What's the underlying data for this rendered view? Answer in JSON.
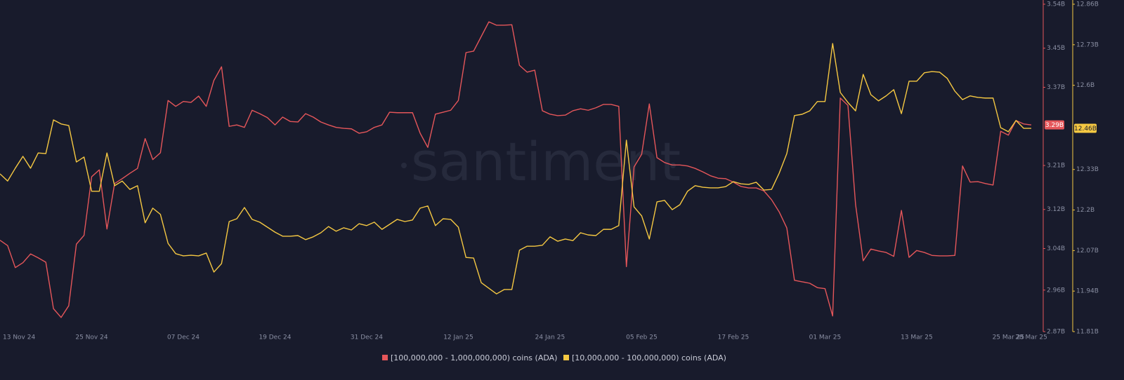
{
  "chart_data": {
    "type": "line",
    "watermark": "santiment",
    "x": [
      "2024-11-13",
      "2024-11-14",
      "2024-11-15",
      "2024-11-16",
      "2024-11-17",
      "2024-11-18",
      "2024-11-19",
      "2024-11-20",
      "2024-11-21",
      "2024-11-22",
      "2024-11-23",
      "2024-11-24",
      "2024-11-25",
      "2024-11-26",
      "2024-11-27",
      "2024-11-28",
      "2024-11-29",
      "2024-11-30",
      "2024-12-01",
      "2024-12-02",
      "2024-12-03",
      "2024-12-04",
      "2024-12-05",
      "2024-12-06",
      "2024-12-07",
      "2024-12-08",
      "2024-12-09",
      "2024-12-10",
      "2024-12-11",
      "2024-12-12",
      "2024-12-13",
      "2024-12-14",
      "2024-12-15",
      "2024-12-16",
      "2024-12-17",
      "2024-12-18",
      "2024-12-19",
      "2024-12-20",
      "2024-12-21",
      "2024-12-22",
      "2024-12-23",
      "2024-12-24",
      "2024-12-25",
      "2024-12-26",
      "2024-12-27",
      "2024-12-28",
      "2024-12-29",
      "2024-12-30",
      "2024-12-31",
      "2025-01-01",
      "2025-01-02",
      "2025-01-03",
      "2025-01-04",
      "2025-01-05",
      "2025-01-06",
      "2025-01-07",
      "2025-01-08",
      "2025-01-09",
      "2025-01-10",
      "2025-01-11",
      "2025-01-12",
      "2025-01-13",
      "2025-01-14",
      "2025-01-15",
      "2025-01-16",
      "2025-01-17",
      "2025-01-18",
      "2025-01-19",
      "2025-01-20",
      "2025-01-21",
      "2025-01-22",
      "2025-01-23",
      "2025-01-24",
      "2025-01-25",
      "2025-01-26",
      "2025-01-27",
      "2025-01-28",
      "2025-01-29",
      "2025-01-30",
      "2025-01-31",
      "2025-02-01",
      "2025-02-02",
      "2025-02-03",
      "2025-02-04",
      "2025-02-05",
      "2025-02-06",
      "2025-02-07",
      "2025-02-08",
      "2025-02-09",
      "2025-02-10",
      "2025-02-11",
      "2025-02-12",
      "2025-02-13",
      "2025-02-14",
      "2025-02-15",
      "2025-02-16",
      "2025-02-17",
      "2025-02-18",
      "2025-02-19",
      "2025-02-20",
      "2025-02-21",
      "2025-02-22",
      "2025-02-23",
      "2025-02-24",
      "2025-02-25",
      "2025-02-26",
      "2025-02-27",
      "2025-02-28",
      "2025-03-01",
      "2025-03-02",
      "2025-03-03",
      "2025-03-04",
      "2025-03-05",
      "2025-03-06",
      "2025-03-07",
      "2025-03-08",
      "2025-03-09",
      "2025-03-10",
      "2025-03-11",
      "2025-03-12",
      "2025-03-13",
      "2025-03-14",
      "2025-03-15",
      "2025-03-16",
      "2025-03-17",
      "2025-03-18",
      "2025-03-19",
      "2025-03-20",
      "2025-03-21",
      "2025-03-22",
      "2025-03-23",
      "2025-03-24",
      "2025-03-25",
      "2025-03-26",
      "2025-03-27",
      "2025-03-28"
    ],
    "xticks": [
      {
        "value": "2024-11-13",
        "label": "13 Nov 24"
      },
      {
        "value": "2024-11-25",
        "label": "25 Nov 24"
      },
      {
        "value": "2024-12-07",
        "label": "07 Dec 24"
      },
      {
        "value": "2024-12-19",
        "label": "19 Dec 24"
      },
      {
        "value": "2024-12-31",
        "label": "31 Dec 24"
      },
      {
        "value": "2025-01-12",
        "label": "12 Jan 25"
      },
      {
        "value": "2025-01-24",
        "label": "24 Jan 25"
      },
      {
        "value": "2025-02-05",
        "label": "05 Feb 25"
      },
      {
        "value": "2025-02-17",
        "label": "17 Feb 25"
      },
      {
        "value": "2025-03-01",
        "label": "01 Mar 25"
      },
      {
        "value": "2025-03-13",
        "label": "13 Mar 25"
      },
      {
        "value": "2025-03-25",
        "label": "25 Mar 25"
      },
      {
        "value": "2025-03-28",
        "label": "28 Mar 25"
      }
    ],
    "ylim": [
      2.87,
      3.54
    ],
    "yticks": [
      {
        "value": 2.87,
        "label": "2.87B"
      },
      {
        "value": 2.955,
        "label": "2.96B"
      },
      {
        "value": 3.04,
        "label": "3.04B"
      },
      {
        "value": 3.12,
        "label": "3.12B"
      },
      {
        "value": 3.21,
        "label": "3.21B"
      },
      {
        "value": 3.37,
        "label": "3.37B"
      },
      {
        "value": 3.45,
        "label": "3.45B"
      },
      {
        "value": 3.54,
        "label": "3.54B"
      }
    ],
    "y2lim": [
      11.81,
      12.86
    ],
    "y2ticks": [
      {
        "value": 11.81,
        "label": "11.81B"
      },
      {
        "value": 11.94,
        "label": "11.94B"
      },
      {
        "value": 12.07,
        "label": "12.07B"
      },
      {
        "value": 12.2,
        "label": "12.2B"
      },
      {
        "value": 12.33,
        "label": "12.33B"
      },
      {
        "value": 12.6,
        "label": "12.6B"
      },
      {
        "value": 12.73,
        "label": "12.73B"
      },
      {
        "value": 12.86,
        "label": "12.86B"
      }
    ],
    "series": [
      {
        "name": "[100,000,000 - 1,000,000,000) coins (ADA)",
        "color": "#e5565a",
        "axis": "y",
        "current_label": "3.29B",
        "values": [
          3.057,
          3.046,
          3.001,
          3.011,
          3.029,
          3.021,
          3.012,
          2.917,
          2.899,
          2.923,
          3.049,
          3.067,
          3.187,
          3.201,
          3.08,
          3.173,
          3.183,
          3.194,
          3.204,
          3.265,
          3.222,
          3.236,
          3.343,
          3.331,
          3.341,
          3.339,
          3.352,
          3.331,
          3.384,
          3.412,
          3.29,
          3.293,
          3.288,
          3.323,
          3.316,
          3.308,
          3.293,
          3.309,
          3.3,
          3.299,
          3.316,
          3.309,
          3.299,
          3.293,
          3.288,
          3.286,
          3.285,
          3.276,
          3.279,
          3.288,
          3.293,
          3.319,
          3.318,
          3.318,
          3.318,
          3.276,
          3.247,
          3.315,
          3.319,
          3.323,
          3.343,
          3.441,
          3.444,
          3.474,
          3.504,
          3.497,
          3.497,
          3.498,
          3.415,
          3.401,
          3.405,
          3.322,
          3.315,
          3.312,
          3.313,
          3.322,
          3.326,
          3.323,
          3.328,
          3.335,
          3.335,
          3.331,
          3.003,
          3.207,
          3.233,
          3.336,
          3.226,
          3.216,
          3.211,
          3.211,
          3.209,
          3.204,
          3.197,
          3.189,
          3.184,
          3.183,
          3.176,
          3.167,
          3.164,
          3.164,
          3.158,
          3.14,
          3.115,
          3.082,
          2.975,
          2.972,
          2.969,
          2.96,
          2.958,
          2.902,
          3.348,
          3.333,
          3.13,
          3.015,
          3.039,
          3.035,
          3.032,
          3.024,
          3.118,
          3.022,
          3.036,
          3.032,
          3.026,
          3.025,
          3.025,
          3.026,
          3.209,
          3.176,
          3.177,
          3.173,
          3.17,
          3.28,
          3.272,
          3.302,
          3.295,
          3.293
        ]
      },
      {
        "name": "[10,000,000 - 100,000,000) coins (ADA)",
        "color": "#f5c842",
        "axis": "y2",
        "current_label": "12.46B",
        "values": [
          12.316,
          12.293,
          12.334,
          12.372,
          12.334,
          12.383,
          12.381,
          12.489,
          12.476,
          12.471,
          12.354,
          12.37,
          12.26,
          12.26,
          12.383,
          12.278,
          12.293,
          12.266,
          12.278,
          12.159,
          12.206,
          12.186,
          12.093,
          12.06,
          12.053,
          12.055,
          12.053,
          12.062,
          12.001,
          12.028,
          12.163,
          12.172,
          12.208,
          12.17,
          12.161,
          12.145,
          12.129,
          12.116,
          12.116,
          12.118,
          12.105,
          12.114,
          12.127,
          12.147,
          12.132,
          12.143,
          12.136,
          12.156,
          12.15,
          12.161,
          12.138,
          12.154,
          12.17,
          12.163,
          12.168,
          12.206,
          12.213,
          12.15,
          12.172,
          12.17,
          12.145,
          12.048,
          12.046,
          11.967,
          11.949,
          11.931,
          11.945,
          11.945,
          12.071,
          12.084,
          12.084,
          12.087,
          12.114,
          12.1,
          12.107,
          12.102,
          12.127,
          12.12,
          12.118,
          12.138,
          12.138,
          12.15,
          12.424,
          12.21,
          12.181,
          12.107,
          12.226,
          12.231,
          12.201,
          12.217,
          12.26,
          12.278,
          12.273,
          12.271,
          12.271,
          12.275,
          12.291,
          12.284,
          12.282,
          12.289,
          12.264,
          12.266,
          12.318,
          12.381,
          12.503,
          12.507,
          12.518,
          12.548,
          12.548,
          12.734,
          12.577,
          12.545,
          12.518,
          12.635,
          12.57,
          12.55,
          12.566,
          12.586,
          12.509,
          12.613,
          12.613,
          12.64,
          12.644,
          12.642,
          12.622,
          12.581,
          12.554,
          12.566,
          12.561,
          12.559,
          12.559,
          12.464,
          12.451,
          12.487,
          12.462,
          12.462
        ]
      }
    ]
  }
}
